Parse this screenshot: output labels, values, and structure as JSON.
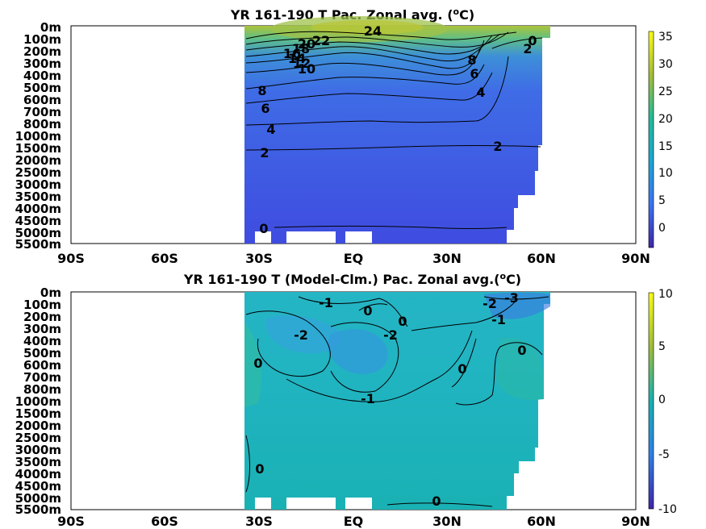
{
  "chart_data": [
    {
      "type": "heatmap",
      "title_main": "YR 161-190 T Pac. Zonal avg. (",
      "title_sup": "o",
      "title_end": "C)",
      "xticks": [
        "90S",
        "60S",
        "30S",
        "EQ",
        "30N",
        "60N",
        "90N"
      ],
      "x_range": [
        -90,
        90
      ],
      "yticks": [
        "0m",
        "100m",
        "200m",
        "300m",
        "400m",
        "500m",
        "600m",
        "700m",
        "800m",
        "1000m",
        "1500m",
        "2000m",
        "2500m",
        "3000m",
        "3500m",
        "4000m",
        "4500m",
        "5000m",
        "5500m"
      ],
      "colorbar": {
        "ticks": [
          "35",
          "30",
          "25",
          "20",
          "15",
          "10",
          "5",
          "0"
        ],
        "values": [
          35,
          30,
          25,
          20,
          15,
          10,
          5,
          0
        ],
        "range": [
          -4,
          36
        ]
      },
      "contour_labels": [
        "24",
        "22",
        "20",
        "18",
        "16",
        "14",
        "12",
        "10",
        "8",
        "6",
        "4",
        "2",
        "0",
        "0",
        "2",
        "4",
        "6",
        "8",
        "2"
      ]
    },
    {
      "type": "heatmap",
      "title_main": "YR 161-190 T (Model-Clm.) Pac. Zonal avg.(",
      "title_sup": "o",
      "title_end": "C)",
      "xticks": [
        "90S",
        "60S",
        "30S",
        "EQ",
        "30N",
        "60N",
        "90N"
      ],
      "x_range": [
        -90,
        90
      ],
      "yticks": [
        "0m",
        "100m",
        "200m",
        "300m",
        "400m",
        "500m",
        "600m",
        "700m",
        "800m",
        "1000m",
        "1500m",
        "2000m",
        "2500m",
        "3000m",
        "3500m",
        "4000m",
        "4500m",
        "5000m",
        "5500m"
      ],
      "colorbar": {
        "ticks": [
          "10",
          "5",
          "0",
          "-5",
          "-10"
        ],
        "values": [
          10,
          5,
          0,
          -5,
          -10
        ],
        "range": [
          -10,
          10
        ]
      },
      "contour_labels": [
        "-1",
        "0",
        "0",
        "-2",
        "-2",
        "0",
        "-1",
        "0",
        "-2",
        "-3",
        "-1",
        "0",
        "0",
        "0"
      ]
    }
  ]
}
